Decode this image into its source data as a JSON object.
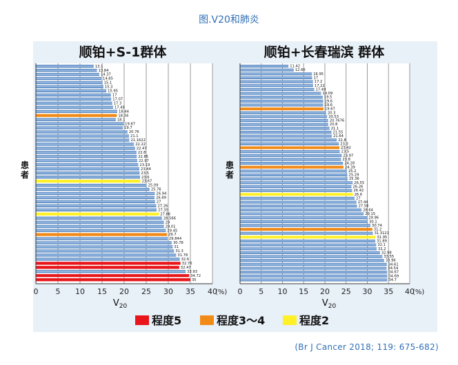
{
  "figure": {
    "title": "图.V20和肺炎",
    "citation": "(Br J Cancer 2018; 119: 675-682)",
    "y_axis_label": "患者",
    "legend": [
      {
        "label": "程度5",
        "color": "#e8151b"
      },
      {
        "label": "程度3～4",
        "color": "#f28a17"
      },
      {
        "label": "程度2",
        "color": "#fff027"
      }
    ],
    "colors": {
      "default_bar": "#3b6fb0",
      "bar_highlight": "#a8c8ec",
      "accent": "#2f6fb6"
    }
  },
  "chart_data": [
    {
      "type": "bar",
      "orientation": "horizontal",
      "title": "顺铂+S-1群体",
      "xlabel": "V20",
      "xlabel_sub": "20",
      "x_unit": "(%)",
      "xlim": [
        0,
        40
      ],
      "xticks": [
        0,
        5,
        10,
        15,
        20,
        25,
        30,
        35,
        40
      ],
      "grid": true,
      "values": [
        13.1,
        13.84,
        14.37,
        14.85,
        15.1,
        15.3,
        15.95,
        17,
        17.07,
        17.3,
        17.49,
        18.44,
        18.34,
        18.1,
        19.87,
        19.7,
        20.76,
        21.1,
        21.1622,
        22.22,
        22.47,
        22.8,
        22.85,
        22.97,
        23.19,
        23.44,
        23.5,
        23.6,
        23.67,
        25.09,
        25.76,
        26.94,
        26.89,
        27,
        27.26,
        27.35,
        27.86,
        28.566,
        29,
        29.01,
        29.45,
        29.7,
        29.844,
        30.78,
        31,
        31.3,
        31.78,
        32.6,
        32.76,
        32.47,
        33.93,
        34.72,
        35
      ],
      "labels": [
        "13.1",
        "13.84",
        "14.37",
        "14.85",
        "15.1",
        "15.3",
        "15.95",
        "17",
        "17.07",
        "17.3",
        "17.49",
        "18.44",
        "18.34",
        "18.1",
        "19.87",
        "19.7",
        "20.76",
        "21.1",
        "21.1622",
        "22.22",
        "22.47",
        "22.8",
        "22.85",
        "22.97",
        "23.19",
        "23.44",
        "23.5",
        "23.6",
        "23.67",
        "25.09",
        "25.76",
        "26.94",
        "26.89",
        "27",
        "27.26",
        "27.35",
        "27.86",
        "28.566",
        "29",
        "29.01",
        "29.45",
        "29.7",
        "29.844",
        "30.78",
        "31",
        "31.3",
        "31.78",
        "32.6",
        "32.76",
        "32.47",
        "33.93",
        "34.72",
        "35"
      ],
      "bar_grades": {
        "12": "程度3～4",
        "28": "程度2",
        "36": "程度2",
        "41": "程度3～4",
        "48": "程度5",
        "49": "程度5",
        "51": "程度5",
        "52": "程度5"
      }
    },
    {
      "type": "bar",
      "orientation": "horizontal",
      "title": "顺铂+长春瑞滨 群体",
      "xlabel": "V20",
      "xlabel_sub": "20",
      "x_unit": "(%)",
      "xlim": [
        0,
        40
      ],
      "xticks": [
        0,
        5,
        10,
        15,
        20,
        25,
        30,
        35,
        40
      ],
      "grid": true,
      "values": [
        11.42,
        12.66,
        16.95,
        17,
        17.2,
        17.22,
        17.49,
        19.09,
        19.5,
        19.6,
        19.6,
        19.67,
        20.3,
        20.53,
        20.7676,
        20.8,
        21.1,
        21.55,
        21.64,
        22.8,
        23.3,
        23.42,
        23.5,
        23.97,
        23.8,
        24.28,
        24.39,
        25.2,
        25.29,
        25.36,
        26.55,
        26.26,
        26.42,
        26.6,
        27,
        27.44,
        27.58,
        28.64,
        29.15,
        29.96,
        30.1,
        30.74,
        31.2,
        31.3121,
        31.95,
        31.89,
        32.1,
        32.2,
        32.98,
        33.55,
        33.96,
        34.61,
        34.54,
        34.67,
        34.69,
        34.7
      ],
      "labels": [
        "11.42",
        "12.66",
        "16.95",
        "17",
        "17.2",
        "17.22",
        "17.49",
        "19.09",
        "19.5",
        "19.6",
        "19.6",
        "19.67",
        "20.3",
        "20.53",
        "20.7676",
        "20.8",
        "21.1",
        "21.55",
        "21.64",
        "22.8",
        "23.3",
        "23.42",
        "23.5",
        "23.97",
        "23.8",
        "24.28",
        "24.39",
        "25.2",
        "25.29",
        "25.36",
        "26.55",
        "26.26",
        "26.42",
        "26.6",
        "27",
        "27.44",
        "27.58",
        "28.64",
        "29.15",
        "29.96",
        "30.1",
        "30.74",
        "31.2",
        "31.3121",
        "31.95",
        "31.89",
        "32.1",
        "32.2",
        "32.98",
        "33.55",
        "33.96",
        "34.61",
        "34.54",
        "34.67",
        "34.69",
        "34.7"
      ],
      "bar_grades": {
        "11": "程度3～4",
        "21": "程度3～4",
        "26": "程度3～4",
        "33": "程度2",
        "42": "程度3～4",
        "44": "程度2"
      }
    }
  ]
}
